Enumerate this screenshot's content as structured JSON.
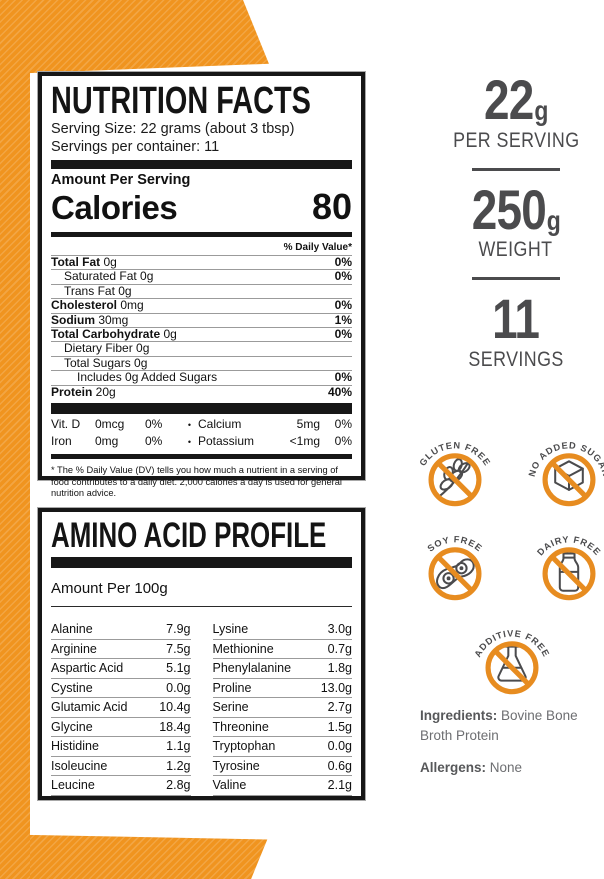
{
  "colors": {
    "accent_orange": "#f0941f",
    "dark_gray": "#4b4b4d",
    "label_black": "#171717"
  },
  "nutrition_facts": {
    "title": "NUTRITION FACTS",
    "serving_size": "Serving Size: 22 grams (about 3 tbsp)",
    "servings_per_container": "Servings per container:  11",
    "amount_per_serving": "Amount Per Serving",
    "calories_label": "Calories",
    "calories_value": "80",
    "daily_value_header": "% Daily Value*",
    "rows": [
      {
        "name": "Total Fat",
        "amount": "0g",
        "dv": "0%",
        "bold": true,
        "indent": 0
      },
      {
        "name": "Saturated Fat",
        "amount": "0g",
        "dv": "0%",
        "bold": false,
        "indent": 1
      },
      {
        "name": "Trans Fat",
        "amount": "0g",
        "dv": "",
        "bold": false,
        "indent": 1
      },
      {
        "name": "Cholesterol",
        "amount": "0mg",
        "dv": "0%",
        "bold": true,
        "indent": 0
      },
      {
        "name": "Sodium",
        "amount": "30mg",
        "dv": "1%",
        "bold": true,
        "indent": 0
      },
      {
        "name": "Total Carbohydrate",
        "amount": "0g",
        "dv": "0%",
        "bold": true,
        "indent": 0
      },
      {
        "name": "Dietary Fiber",
        "amount": "0g",
        "dv": "",
        "bold": false,
        "indent": 1
      },
      {
        "name": "Total Sugars",
        "amount": "0g",
        "dv": "",
        "bold": false,
        "indent": 1
      },
      {
        "name": "Includes 0g Added Sugars",
        "amount": "",
        "dv": "0%",
        "bold": false,
        "indent": 2
      },
      {
        "name": "Protein",
        "amount": "20g",
        "dv": "40%",
        "bold": true,
        "indent": 0
      }
    ],
    "micronutrients": [
      {
        "left": {
          "name": "Vit. D",
          "amount": "0mcg",
          "dv": "0%"
        },
        "right": {
          "name": "Calcium",
          "amount": "5mg",
          "dv": "0%"
        }
      },
      {
        "left": {
          "name": "Iron",
          "amount": "0mg",
          "dv": "0%"
        },
        "right": {
          "name": "Potassium",
          "amount": "<1mg",
          "dv": "0%"
        }
      }
    ],
    "footnote": "* The % Daily Value (DV) tells you how much a nutrient in a serving of food contributes to a daily diet. 2,000 calories a day is used for general nutrition advice."
  },
  "amino_acid_profile": {
    "title": "AMINO ACID PROFILE",
    "amount_header": "Amount Per 100g",
    "left_column": [
      {
        "name": "Alanine",
        "value": "7.9g"
      },
      {
        "name": "Arginine",
        "value": "7.5g"
      },
      {
        "name": "Aspartic Acid",
        "value": "5.1g"
      },
      {
        "name": "Cystine",
        "value": "0.0g"
      },
      {
        "name": "Glutamic Acid",
        "value": "10.4g"
      },
      {
        "name": "Glycine",
        "value": "18.4g"
      },
      {
        "name": "Histidine",
        "value": "1.1g"
      },
      {
        "name": "Isoleucine",
        "value": "1.2g"
      },
      {
        "name": "Leucine",
        "value": "2.8g"
      }
    ],
    "right_column": [
      {
        "name": "Lysine",
        "value": "3.0g"
      },
      {
        "name": "Methionine",
        "value": "0.7g"
      },
      {
        "name": "Phenylalanine",
        "value": "1.8g"
      },
      {
        "name": "Proline",
        "value": "13.0g"
      },
      {
        "name": "Serine",
        "value": "2.7g"
      },
      {
        "name": "Threonine",
        "value": "1.5g"
      },
      {
        "name": "Tryptophan",
        "value": "0.0g"
      },
      {
        "name": "Tyrosine",
        "value": "0.6g"
      },
      {
        "name": "Valine",
        "value": "2.1g"
      }
    ]
  },
  "stats": [
    {
      "value": "22",
      "unit": "g",
      "label": "PER SERVING"
    },
    {
      "value": "250",
      "unit": "g",
      "label": "WEIGHT"
    },
    {
      "value": "11",
      "unit": "",
      "label": "SERVINGS"
    }
  ],
  "badges": [
    {
      "label": "GLUTEN FREE",
      "icon": "wheat-icon"
    },
    {
      "label": "NO ADDED SUGAR",
      "icon": "sugar-cube-icon"
    },
    {
      "label": "SOY FREE",
      "icon": "soy-pod-icon"
    },
    {
      "label": "DAIRY FREE",
      "icon": "milk-bottle-icon"
    },
    {
      "label": "ADDITIVE FREE",
      "icon": "flask-icon"
    }
  ],
  "ingredients": {
    "label": "Ingredients:",
    "value": "Bovine Bone Broth Protein",
    "allergens_label": "Allergens:",
    "allergens_value": "None"
  }
}
